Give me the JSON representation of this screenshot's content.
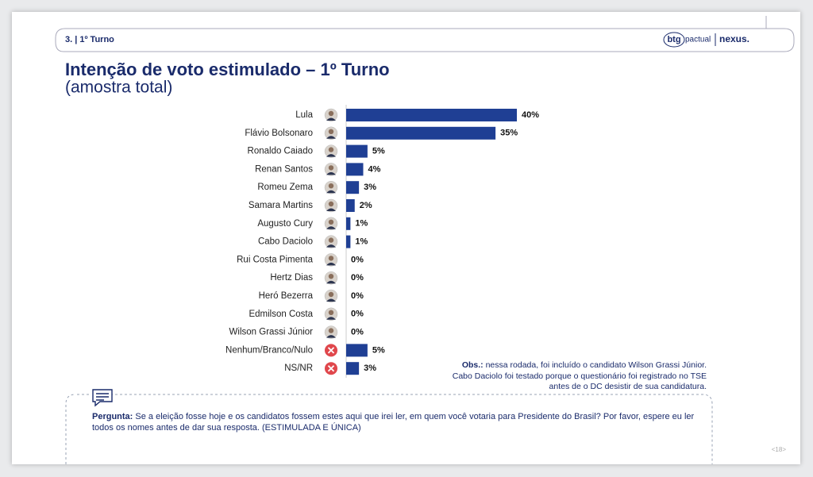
{
  "header": {
    "section": "3. | 1º Turno",
    "logo_btg": "btg",
    "logo_pactual": "pactual",
    "logo_nexus": "nexus."
  },
  "chart_data": {
    "type": "bar",
    "orientation": "horizontal",
    "title": "Intenção de voto estimulado – 1º Turno",
    "subtitle": "(amostra total)",
    "categories": [
      "Lula",
      "Flávio Bolsonaro",
      "Ronaldo Caiado",
      "Renan Santos",
      "Romeu Zema",
      "Samara Martins",
      "Augusto Cury",
      "Cabo Daciolo",
      "Rui Costa Pimenta",
      "Hertz Dias",
      "Heró Bezerra",
      "Edmilson Costa",
      "Wilson Grassi Júnior",
      "Nenhum/Branco/Nulo",
      "NS/NR"
    ],
    "values": [
      40,
      35,
      5,
      4,
      3,
      2,
      1,
      1,
      0,
      0,
      0,
      0,
      0,
      5,
      3
    ],
    "value_labels": [
      "40%",
      "35%",
      "5%",
      "4%",
      "3%",
      "2%",
      "1%",
      "1%",
      "0%",
      "0%",
      "0%",
      "0%",
      "0%",
      "5%",
      "3%"
    ],
    "color": "#1f3f94"
  },
  "note": {
    "label": "Obs.:",
    "text": "nessa rodada, foi incluído o candidato Wilson Grassi Júnior. Cabo Daciolo foi testado porque o questionário foi registrado no TSE antes de o DC desistir de sua candidatura."
  },
  "question": {
    "label": "Pergunta:",
    "text": "Se a eleição fosse hoje e os candidatos fossem estes aqui que irei ler, em quem você votaria para Presidente do Brasil? Por favor, espere eu ler todos os nomes antes de dar sua resposta. (ESTIMULADA E ÚNICA)"
  },
  "page_number": "<18>"
}
